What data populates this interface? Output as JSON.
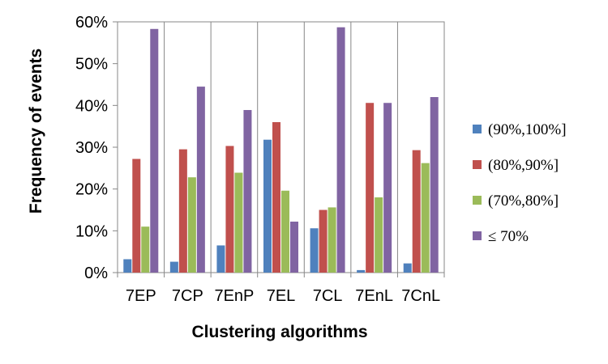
{
  "chart_data": {
    "type": "bar",
    "title": "",
    "xlabel": "Clustering algorithms",
    "ylabel": "Frequency of events",
    "categories": [
      "7EP",
      "7CP",
      "7EnP",
      "7EL",
      "7CL",
      "7EnL",
      "7CnL"
    ],
    "ylim": [
      0,
      60
    ],
    "yticks": [
      0,
      10,
      20,
      30,
      40,
      50,
      60
    ],
    "ytick_labels": [
      "0%",
      "10%",
      "20%",
      "30%",
      "40%",
      "50%",
      "60%"
    ],
    "grid": "vertical category separators",
    "legend_position": "right",
    "series": [
      {
        "name": "(90%,100%]",
        "color": "#4f81bd",
        "values": [
          3.2,
          2.6,
          6.5,
          31.8,
          10.6,
          0.6,
          2.2
        ]
      },
      {
        "name": "(80%,90%]",
        "color": "#c0504d",
        "values": [
          27.2,
          29.5,
          30.3,
          36.0,
          15.0,
          40.6,
          29.3
        ]
      },
      {
        "name": "(70%,80%]",
        "color": "#9bbb59",
        "values": [
          11.0,
          22.8,
          23.9,
          19.6,
          15.6,
          18.0,
          26.2
        ]
      },
      {
        "name": "≤ 70%",
        "color": "#8064a2",
        "values": [
          58.3,
          44.5,
          38.9,
          12.2,
          58.7,
          40.6,
          42.0
        ]
      }
    ]
  }
}
